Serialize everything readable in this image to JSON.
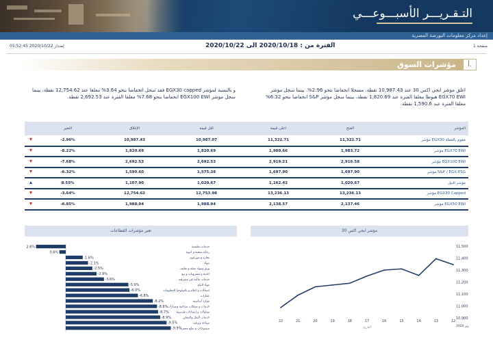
{
  "banner": {
    "title": "التـقـريـــر الأسبـــوعـــي",
    "subtitle": "إعداد مركز معلومات البورصة المصرية"
  },
  "info": {
    "page": "صفحة 1",
    "period": "الفترة من : 2020/10/18 الى 2020/10/22",
    "issue": "إصدار 2020/10/22 05:52:45"
  },
  "section": {
    "number": "أ.",
    "title": "مؤشرات السوق"
  },
  "paragraphs": {
    "right": "اغلق مؤشر ايجي اكس 30 عند 10,987.43 نقطة، مسجلا انخفاضا بنحو 2.96%. بينما سجل مؤشر EGX70 EWI هبوطا مغلقا الفترة عند 1,820.69 نقطة، بينما سجل مؤشر S&P انخفاضا بنحو 6.32% مغلقا الفترة عند 1,590.6 نقطة.",
    "left": "و بالنسبة لمؤشر EGX30 capped فقد سجل انخفاضا بنحو 3.64% مغلقا عند 12,754.62 نقطة، بينما سجل مؤشر EGX100 EWI انخفاضا بنحو 7.68% مغلقا الفترة عند 2,692.53 نقطة."
  },
  "table": {
    "headers": [
      "المؤشر",
      "الفتح",
      "اعلى قيمة",
      "اقل قيمة",
      "الإغلاق",
      "التغير"
    ],
    "rows": [
      {
        "name": "مؤشر EGX30 مقوم بالعملة",
        "open": "11,322.71",
        "high": "11,322.71",
        "low": "10,987.07",
        "close": "10,987.43",
        "change": "-2.96%",
        "dir": "down"
      },
      {
        "name": "مؤشر EGX70 EWI",
        "open": "1,983.72",
        "high": "1,988.66",
        "low": "1,820.69",
        "close": "1,820.69",
        "change": "-8.22%",
        "dir": "down"
      },
      {
        "name": "مؤشر EGX100 EWI",
        "open": "2,916.58",
        "high": "2,919.21",
        "low": "2,692.53",
        "close": "2,692.53",
        "change": "-7.68%",
        "dir": "down"
      },
      {
        "name": "مؤشر S&P / EGX ESG",
        "open": "1,697.90",
        "high": "1,697.90",
        "low": "1,575.38",
        "close": "1,590.60",
        "change": "-6.32%",
        "dir": "down"
      },
      {
        "name": "مؤشر النيل",
        "open": "1,020.67",
        "high": "1,162.42",
        "low": "1,020.67",
        "close": "1,107.90",
        "change": "8.55%",
        "dir": "up"
      },
      {
        "name": "مؤشر EGX30 Capped",
        "open": "13,236.13",
        "high": "13,236.13",
        "low": "12,753.98",
        "close": "12,754.62",
        "change": "-3.64%",
        "dir": "down"
      },
      {
        "name": "مؤشر EGX50 EWI",
        "open": "2,137.46",
        "high": "2,138.57",
        "low": "1,988.94",
        "close": "1,988.94",
        "change": "-6.85%",
        "dir": "down"
      }
    ]
  },
  "panels": {
    "sectors_title": "تغير مؤشرات القطاعات",
    "egx30_title": "مؤشر ايجي اكس 30"
  },
  "colors": {
    "navy": "#14385f",
    "bar": "#1f3c66",
    "line": "#1f3c66",
    "down": "#c0272d",
    "up": "#1f3c8a",
    "gold": "#c9b489"
  },
  "chart_data": [
    {
      "type": "bar",
      "orientation": "horizontal",
      "title": "تغير مؤشرات القطاعات",
      "categories": [
        "خدمات تعليمية",
        "رعاية صحية و ادوية",
        "تجارة و موزعون",
        "بنوك",
        "ورق ومواد تعبئة و تغليف",
        "اغذية و مشروبات و تبغ",
        "خدمات مالية غير مصرفية",
        "مواد البناء",
        "اتصالات و اعلام و تكنولوجيا المعلومات",
        "عقارات",
        "موارد اساسية",
        "خدمات و منتجات صناعية وسيارات",
        "مقاولات و إنشاءات هندسية",
        "خدمات النقل والشحن",
        "سياحة وترفيه",
        "منسوجات و سلع معمرة"
      ],
      "values": [
        2.8,
        0.6,
        -1.6,
        -2.1,
        -2.5,
        -2.9,
        -3.6,
        -5.9,
        -6.0,
        -6.8,
        -8.2,
        -8.6,
        -8.7,
        -8.9,
        -9.5,
        -9.9
      ],
      "labels": [
        "2.8%",
        "0.6%",
        "-1.6%",
        "-2.1%",
        "-2.5%",
        "-2.9%",
        "-3.6%",
        "-5.9%",
        "-6.0%",
        "-6.8%",
        "-8.2%",
        "-8.6%",
        "-8.7%",
        "-8.9%",
        "-9.5%",
        "-9.9%"
      ]
    },
    {
      "type": "line",
      "title": "مؤشر ايجي اكس 30",
      "x": [
        "22",
        "21",
        "20",
        "19",
        "18",
        "17",
        "16",
        "15",
        "14",
        "13",
        "12"
      ],
      "y": [
        10987,
        11090,
        11160,
        11175,
        11190,
        11250,
        11300,
        11310,
        11255,
        11395,
        11345
      ],
      "xlabel": "التاريخ",
      "ylabel": "",
      "x_corner_label": "اكتوبر 2020",
      "yticks": [
        "10,900",
        "11,000",
        "11,100",
        "11,200",
        "11,300",
        "11,400",
        "11,500"
      ],
      "ylim": [
        10900,
        11500
      ]
    }
  ]
}
